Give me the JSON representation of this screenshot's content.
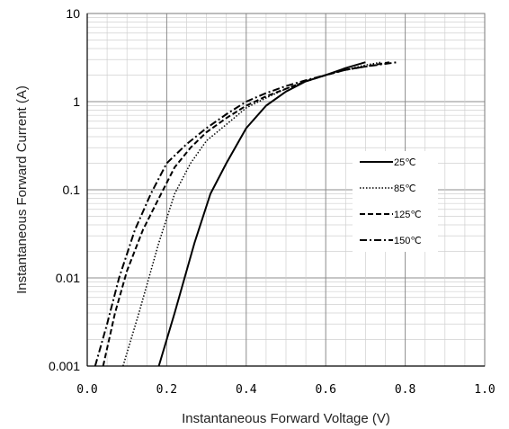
{
  "chart_data": {
    "type": "line",
    "title": "",
    "xlabel": "Instantaneous Forward Voltage (V)",
    "ylabel": "Instantaneous Forward Current (A)",
    "xlim": [
      0.0,
      1.0
    ],
    "ylim": [
      0.001,
      10
    ],
    "yscale": "log",
    "grid": true,
    "legend_position": "right",
    "x_tick_labels": [
      "0.0",
      "0.2",
      "0.4",
      "0.6",
      "0.8",
      "1.0"
    ],
    "y_tick_labels": [
      "0.001",
      "0.01",
      "0.1",
      "1",
      "10"
    ],
    "series": [
      {
        "name": "25℃",
        "line_style": "solid",
        "x": [
          0.18,
          0.22,
          0.27,
          0.31,
          0.35,
          0.4,
          0.45,
          0.5,
          0.55,
          0.6,
          0.65,
          0.7
        ],
        "y": [
          0.001,
          0.004,
          0.025,
          0.09,
          0.2,
          0.5,
          0.9,
          1.3,
          1.7,
          2.0,
          2.4,
          2.8
        ]
      },
      {
        "name": "85℃",
        "line_style": "dotted",
        "x": [
          0.09,
          0.13,
          0.18,
          0.22,
          0.26,
          0.3,
          0.35,
          0.4,
          0.45,
          0.5,
          0.55,
          0.6,
          0.65,
          0.7,
          0.74
        ],
        "y": [
          0.001,
          0.004,
          0.025,
          0.09,
          0.2,
          0.36,
          0.55,
          0.85,
          1.1,
          1.4,
          1.7,
          2.0,
          2.3,
          2.6,
          2.8
        ]
      },
      {
        "name": "125℃",
        "line_style": "dashed",
        "x": [
          0.04,
          0.07,
          0.1,
          0.14,
          0.18,
          0.22,
          0.26,
          0.3,
          0.35,
          0.4,
          0.45,
          0.5,
          0.55,
          0.6,
          0.65,
          0.7,
          0.76
        ],
        "y": [
          0.001,
          0.004,
          0.012,
          0.035,
          0.08,
          0.18,
          0.3,
          0.45,
          0.65,
          0.9,
          1.15,
          1.4,
          1.7,
          2.0,
          2.3,
          2.5,
          2.8
        ]
      },
      {
        "name": "150℃",
        "line_style": "dash-dot",
        "x": [
          0.02,
          0.05,
          0.08,
          0.12,
          0.16,
          0.2,
          0.25,
          0.3,
          0.35,
          0.4,
          0.45,
          0.5,
          0.55,
          0.6,
          0.65,
          0.7,
          0.78
        ],
        "y": [
          0.001,
          0.003,
          0.01,
          0.035,
          0.09,
          0.2,
          0.33,
          0.5,
          0.72,
          1.0,
          1.25,
          1.5,
          1.75,
          2.0,
          2.3,
          2.5,
          2.8
        ]
      }
    ]
  }
}
